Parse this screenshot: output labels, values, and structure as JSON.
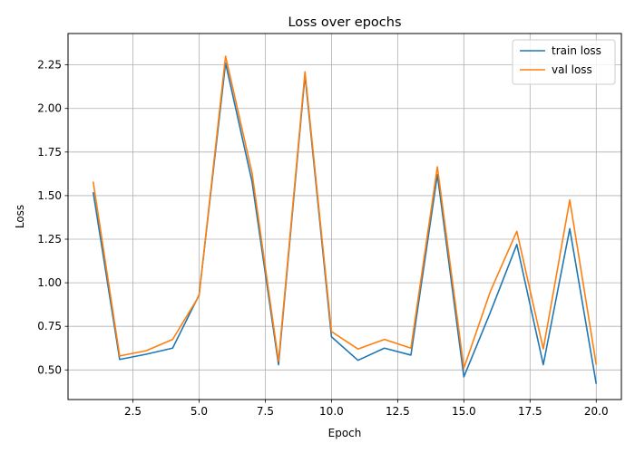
{
  "chart_data": {
    "type": "line",
    "title": "Loss over epochs",
    "xlabel": "Epoch",
    "ylabel": "Loss",
    "x": [
      1,
      2,
      3,
      4,
      5,
      6,
      7,
      8,
      9,
      10,
      11,
      12,
      13,
      14,
      15,
      16,
      17,
      18,
      19,
      20
    ],
    "xlim": [
      0.05,
      20.95
    ],
    "ylim": [
      0.33,
      2.43
    ],
    "xticks": [
      2.5,
      5.0,
      7.5,
      10.0,
      12.5,
      15.0,
      17.5,
      20.0
    ],
    "xtick_labels": [
      "2.5",
      "5.0",
      "7.5",
      "10.0",
      "12.5",
      "15.0",
      "17.5",
      "20.0"
    ],
    "yticks": [
      0.5,
      0.75,
      1.0,
      1.25,
      1.5,
      1.75,
      2.0,
      2.25
    ],
    "ytick_labels": [
      "0.50",
      "0.75",
      "1.00",
      "1.25",
      "1.50",
      "1.75",
      "2.00",
      "2.25"
    ],
    "grid": true,
    "legend_position": "top-right",
    "series": [
      {
        "name": "train loss",
        "color": "#1f77b4",
        "values": [
          1.52,
          0.56,
          0.59,
          0.625,
          0.93,
          2.26,
          1.58,
          0.53,
          2.19,
          0.69,
          0.555,
          0.625,
          0.585,
          1.62,
          0.46,
          0.83,
          1.22,
          0.53,
          1.31,
          0.42
        ]
      },
      {
        "name": "val loss",
        "color": "#ff7f0e",
        "values": [
          1.58,
          0.58,
          0.61,
          0.675,
          0.925,
          2.3,
          1.63,
          0.55,
          2.21,
          0.72,
          0.62,
          0.675,
          0.625,
          1.665,
          0.51,
          0.95,
          1.295,
          0.62,
          1.475,
          0.53
        ]
      }
    ]
  }
}
